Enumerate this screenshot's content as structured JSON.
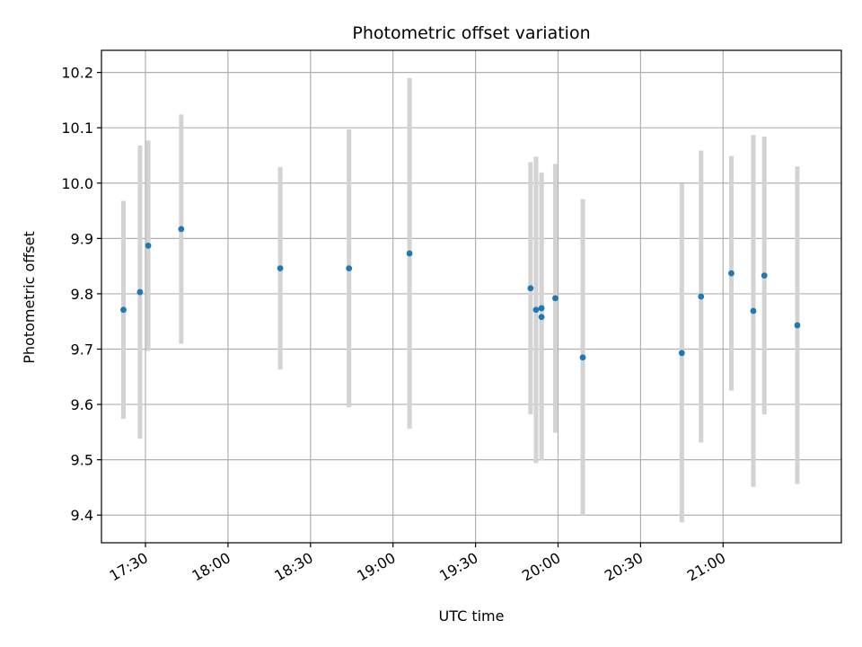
{
  "chart_data": {
    "type": "scatter",
    "title": "Photometric offset variation",
    "xlabel": "UTC time",
    "ylabel": "Photometric offset",
    "grid": true,
    "legend": "none",
    "x_axis_type": "time",
    "xlim": [
      "17:14",
      "21:43"
    ],
    "ylim": [
      9.35,
      10.24
    ],
    "x_ticks": [
      "17:30",
      "18:00",
      "18:30",
      "19:00",
      "19:30",
      "20:00",
      "20:30",
      "21:00"
    ],
    "y_ticks": [
      9.4,
      9.5,
      9.6,
      9.7,
      9.8,
      9.9,
      10.0,
      10.1,
      10.2
    ],
    "marker_color": "#1f77b4",
    "errorbar_color": "#d3d3d3",
    "points": [
      {
        "x": "17:22",
        "y": 9.771,
        "err": 0.197
      },
      {
        "x": "17:28",
        "y": 9.803,
        "err": 0.265
      },
      {
        "x": "17:31",
        "y": 9.887,
        "err": 0.19
      },
      {
        "x": "17:43",
        "y": 9.917,
        "err": 0.207
      },
      {
        "x": "18:19",
        "y": 9.846,
        "err": 0.183
      },
      {
        "x": "18:44",
        "y": 9.846,
        "err": 0.251
      },
      {
        "x": "19:06",
        "y": 9.873,
        "err": 0.317
      },
      {
        "x": "19:50",
        "y": 9.81,
        "err": 0.228
      },
      {
        "x": "19:52",
        "y": 9.771,
        "err": 0.277
      },
      {
        "x": "19:54",
        "y": 9.774,
        "err": 0.245
      },
      {
        "x": "19:54",
        "y": 9.758,
        "err": 0.259
      },
      {
        "x": "19:59",
        "y": 9.792,
        "err": 0.243
      },
      {
        "x": "20:09",
        "y": 9.685,
        "err": 0.286
      },
      {
        "x": "20:45",
        "y": 9.693,
        "err": 0.306
      },
      {
        "x": "20:52",
        "y": 9.795,
        "err": 0.264
      },
      {
        "x": "21:03",
        "y": 9.837,
        "err": 0.212
      },
      {
        "x": "21:11",
        "y": 9.769,
        "err": 0.318
      },
      {
        "x": "21:15",
        "y": 9.833,
        "err": 0.251
      },
      {
        "x": "21:27",
        "y": 9.743,
        "err": 0.287
      }
    ]
  }
}
